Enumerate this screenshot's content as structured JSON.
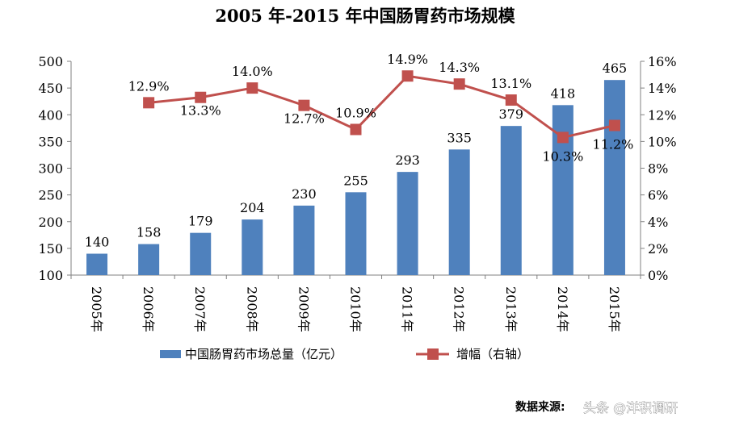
{
  "chart_data": {
    "type": "bar",
    "title": "2005 年-2015 年中国肠胃药市场规模",
    "categories": [
      "2005年",
      "2006年",
      "2007年",
      "2008年",
      "2009年",
      "2010年",
      "2011年",
      "2012年",
      "2013年",
      "2014年",
      "2015年"
    ],
    "series": [
      {
        "name": "中国肠胃药市场总量（亿元）",
        "type": "bar",
        "axis": "left",
        "color": "#4F81BD",
        "values": [
          140,
          158,
          179,
          204,
          230,
          255,
          293,
          335,
          379,
          418,
          465
        ],
        "labels": [
          "140",
          "158",
          "179",
          "204",
          "230",
          "255",
          "293",
          "335",
          "379",
          "418",
          "465"
        ]
      },
      {
        "name": "增幅（右轴）",
        "type": "line",
        "axis": "right",
        "color": "#C0504D",
        "values": [
          null,
          12.9,
          13.3,
          14.0,
          12.7,
          10.9,
          14.9,
          14.3,
          13.1,
          10.3,
          11.2
        ],
        "labels": [
          "",
          "12.9%",
          "13.3%",
          "14.0%",
          "12.7%",
          "10.9%",
          "14.9%",
          "14.3%",
          "13.1%",
          "10.3%",
          "11.2%"
        ]
      }
    ],
    "y_left": {
      "ylim": [
        100,
        500
      ],
      "ticks": [
        "100",
        "150",
        "200",
        "250",
        "300",
        "350",
        "400",
        "450",
        "500"
      ]
    },
    "y_right": {
      "ylim": [
        0,
        16
      ],
      "ticks": [
        "0%",
        "2%",
        "4%",
        "6%",
        "8%",
        "10%",
        "12%",
        "14%",
        "16%"
      ]
    },
    "grid": false,
    "legend_position": "bottom"
  },
  "source_label": "数据来源:",
  "watermark": "头条 @洋积调研"
}
